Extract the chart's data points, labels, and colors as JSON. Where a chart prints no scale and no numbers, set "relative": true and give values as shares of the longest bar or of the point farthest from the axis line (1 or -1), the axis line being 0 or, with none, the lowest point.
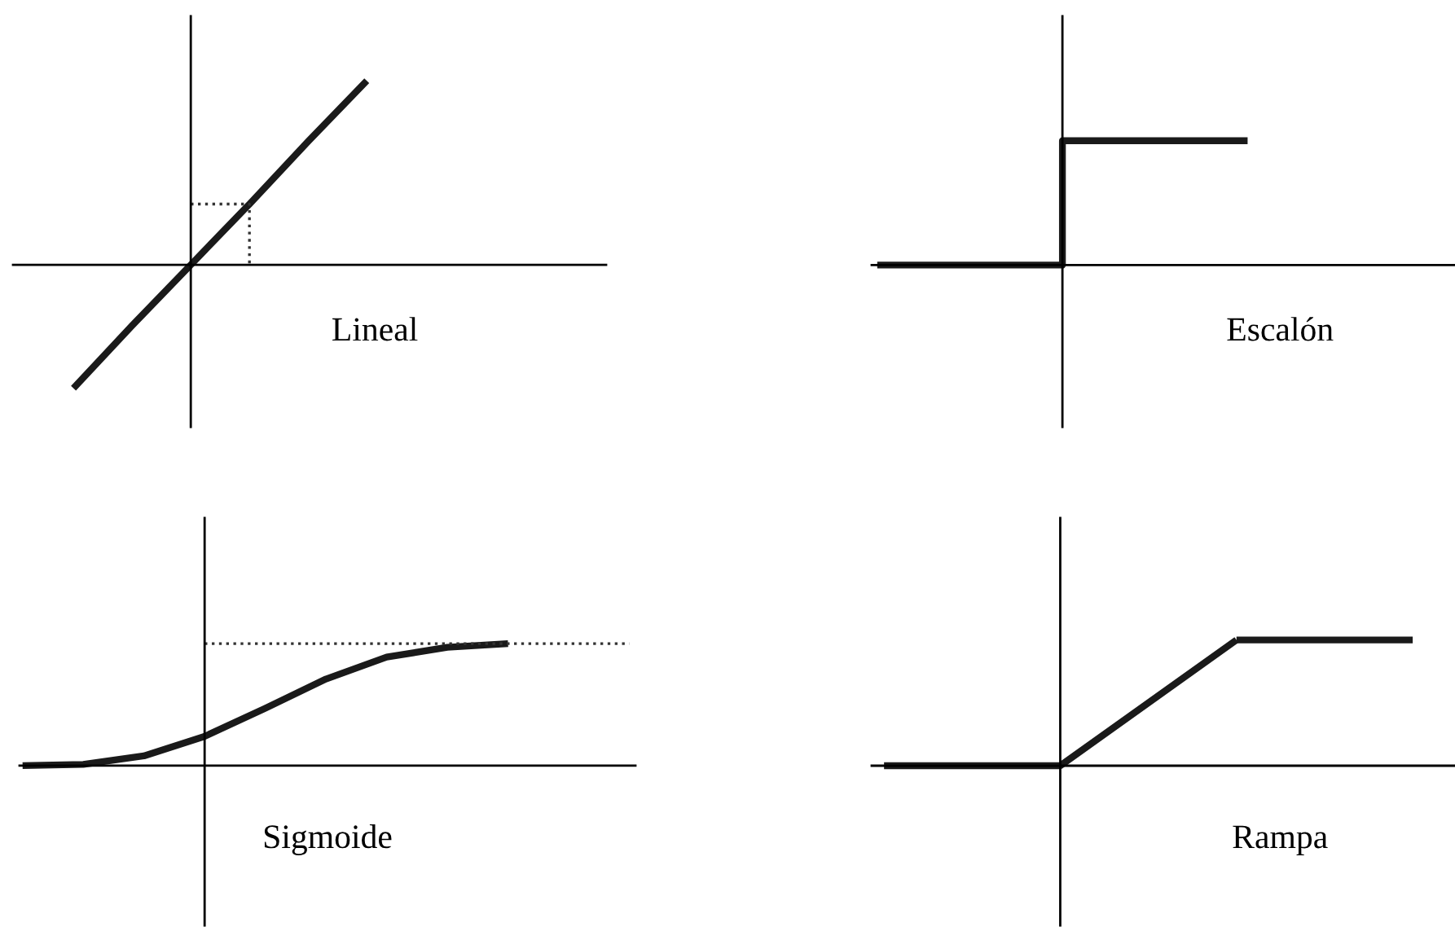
{
  "chart_data": [
    {
      "type": "line",
      "title": "Lineal",
      "relative": true,
      "categories": [
        null,
        null,
        null,
        null,
        null,
        null
      ],
      "series": [
        {
          "color": "#1a1a1a",
          "line_style": "solid",
          "values": [
            -0.67,
            -0.33,
            0,
            0.33,
            0.67,
            1
          ]
        },
        {
          "type": "step",
          "color": "#333333",
          "line_style": "dotted",
          "values": [
            null,
            null,
            0.33,
            0,
            null,
            null
          ]
        }
      ]
    },
    {
      "type": "step",
      "title": "Escalón",
      "relative": true,
      "categories": [
        null,
        null,
        null
      ],
      "series": [
        {
          "color": "#1a1a1a",
          "line_style": "solid",
          "values": [
            0,
            1,
            1
          ]
        }
      ]
    },
    {
      "type": "line",
      "title": "Sigmoide",
      "relative": true,
      "categories": [
        null,
        null,
        null,
        null,
        null,
        null,
        null,
        null,
        null,
        null,
        null
      ],
      "series": [
        {
          "color": "#1a1a1a",
          "line_style": "solid",
          "values": [
            0,
            0.01,
            0.08,
            0.24,
            0.47,
            0.71,
            0.89,
            0.97,
            1.0,
            null,
            null
          ]
        },
        {
          "color": "#333333",
          "line_style": "dotted",
          "values": [
            null,
            null,
            null,
            1,
            1,
            1,
            1,
            1,
            1,
            1,
            1
          ]
        }
      ]
    },
    {
      "type": "line",
      "title": "Rampa",
      "relative": true,
      "categories": [
        null,
        null,
        null,
        null
      ],
      "series": [
        {
          "color": "#1a1a1a",
          "line_style": "solid",
          "values": [
            0,
            0,
            1,
            null
          ]
        },
        {
          "color": "#1a1a1a",
          "line_style": "solid",
          "values": [
            null,
            null,
            1,
            1
          ]
        }
      ]
    }
  ]
}
